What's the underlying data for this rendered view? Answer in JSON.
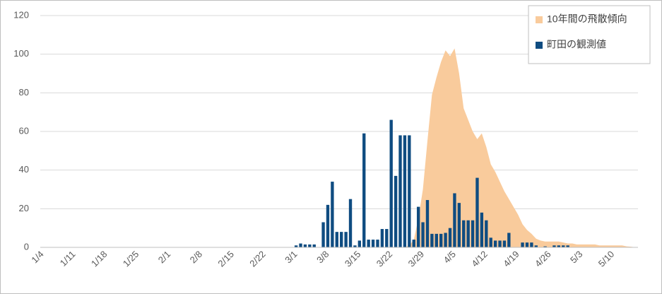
{
  "chart_data": {
    "type": "bar",
    "categories": [
      "1/4",
      null,
      null,
      null,
      null,
      null,
      null,
      "1/11",
      null,
      null,
      null,
      null,
      null,
      null,
      "1/18",
      null,
      null,
      null,
      null,
      null,
      null,
      "1/25",
      null,
      null,
      null,
      null,
      null,
      null,
      "2/1",
      null,
      null,
      null,
      null,
      null,
      null,
      "2/8",
      null,
      null,
      null,
      null,
      null,
      null,
      "2/15",
      null,
      null,
      null,
      null,
      null,
      null,
      "2/22",
      null,
      null,
      null,
      null,
      null,
      null,
      "3/1",
      null,
      null,
      null,
      null,
      null,
      null,
      "3/8",
      null,
      null,
      null,
      null,
      null,
      null,
      "3/15",
      null,
      null,
      null,
      null,
      null,
      null,
      "3/22",
      null,
      null,
      null,
      null,
      null,
      null,
      "3/29",
      null,
      null,
      null,
      null,
      null,
      null,
      "4/5",
      null,
      null,
      null,
      null,
      null,
      null,
      "4/12",
      null,
      null,
      null,
      null,
      null,
      null,
      "4/19",
      null,
      null,
      null,
      null,
      null,
      null,
      "4/26",
      null,
      null,
      null,
      null,
      null,
      null,
      "5/3",
      null,
      null,
      null,
      null,
      null,
      null,
      "5/10",
      null,
      null,
      null,
      null,
      null
    ],
    "series": [
      {
        "name": "10年間の飛散傾向",
        "type": "area",
        "color": "#f9cb9c",
        "values": [
          0,
          0,
          0,
          0,
          0,
          0,
          0,
          0,
          0,
          0,
          0,
          0,
          0,
          0,
          0,
          0,
          0,
          0,
          0,
          0,
          0,
          0,
          0,
          0,
          0,
          0,
          0,
          0,
          0,
          0,
          0,
          0,
          0,
          0,
          0,
          0,
          0,
          0,
          0,
          0,
          0,
          0,
          0,
          0,
          0,
          0,
          0,
          0,
          0,
          0,
          0,
          0,
          0,
          0,
          0,
          0,
          0,
          0,
          0,
          0,
          0,
          0,
          0,
          0,
          0,
          0,
          0,
          0,
          0,
          0,
          0,
          0,
          0,
          0,
          0,
          0,
          0,
          0,
          0,
          0,
          0,
          1,
          4,
          15,
          30,
          55,
          79,
          88,
          96,
          102,
          99,
          103,
          90,
          72,
          66,
          60,
          56,
          59,
          52,
          43,
          39,
          34,
          29,
          25,
          21,
          17,
          12,
          9,
          7,
          4.5,
          3.5,
          3,
          3,
          3,
          3,
          2.5,
          2,
          2,
          1.5,
          1.5,
          1.5,
          1.5,
          1.5,
          1,
          1,
          1,
          1,
          1,
          1,
          0.5,
          0.3,
          0
        ]
      },
      {
        "name": "町田の観測値",
        "type": "bar",
        "color": "#0f4c81",
        "values": [
          0,
          0,
          0,
          0,
          0,
          0,
          0,
          0,
          0,
          0,
          0,
          0,
          0,
          0,
          0,
          0,
          0,
          0,
          0,
          0,
          0,
          0,
          0,
          0,
          0,
          0,
          0,
          0,
          0,
          0,
          0,
          0,
          0,
          0,
          0,
          0,
          0,
          0,
          0,
          0,
          0,
          0,
          0,
          0,
          0,
          0,
          0,
          0,
          0,
          0,
          0,
          0,
          0,
          0,
          0,
          0,
          1,
          2,
          1.5,
          1.5,
          1.5,
          0,
          13,
          22,
          34,
          8,
          8,
          8,
          25,
          1,
          3.5,
          59,
          4,
          4,
          4,
          9.5,
          9.5,
          66,
          37,
          58,
          58,
          58,
          4,
          21,
          13,
          24.5,
          7,
          7,
          7,
          7.5,
          10,
          28,
          23,
          14,
          14,
          14,
          36,
          18,
          14,
          5,
          3.5,
          3.5,
          3.5,
          7.5,
          0,
          0,
          2.5,
          2.5,
          2.5,
          1,
          0,
          0.5,
          0,
          1,
          1,
          1,
          1,
          0,
          0,
          0,
          0,
          0,
          0,
          0,
          0,
          0,
          0,
          0,
          0,
          0,
          0,
          0
        ]
      }
    ],
    "ylim": [
      0,
      120
    ],
    "yticks": [
      0,
      20,
      40,
      60,
      80,
      100,
      120
    ],
    "grid": true,
    "legend": "top-right"
  }
}
